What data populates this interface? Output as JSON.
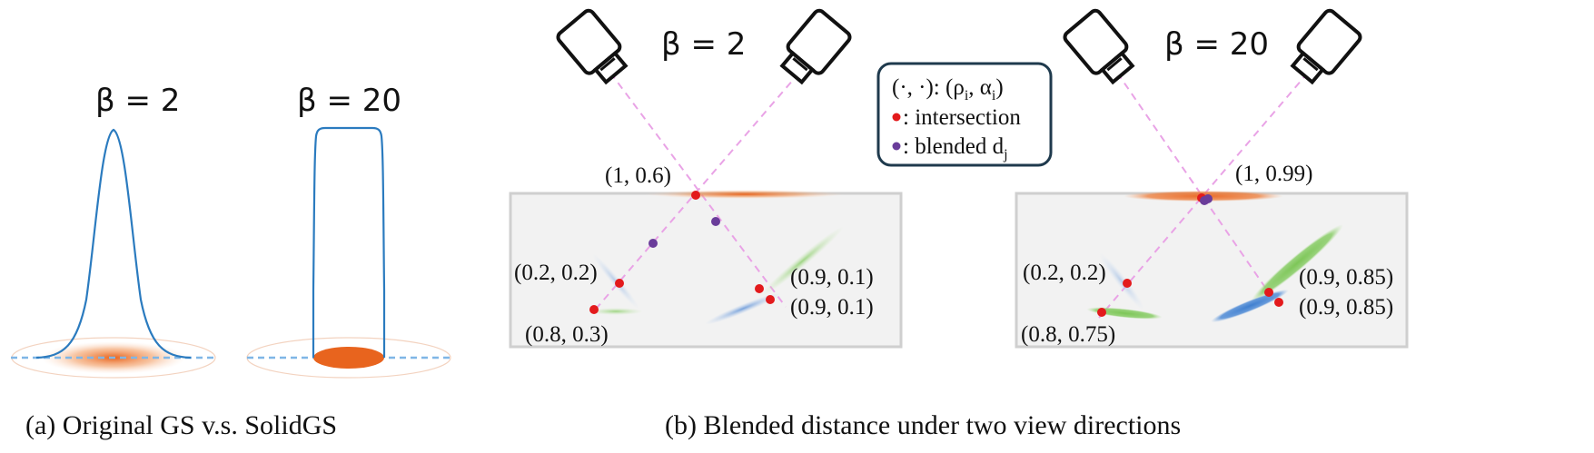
{
  "panel_a": {
    "label_beta2": "β = 2",
    "label_beta20": "β = 20",
    "caption": "(a) Original GS v.s. SolidGS"
  },
  "panel_b": {
    "left_title": "β = 2",
    "right_title": "β = 20",
    "caption": "(b) Blended distance under two view directions",
    "legend": {
      "pair_line": "(·, ·): (ρ",
      "pair_sub_i1": "i",
      "pair_mid": ", α",
      "pair_sub_i2": "i",
      "pair_end": ")",
      "intersection": ": intersection",
      "blended": ": blended d",
      "blended_sub": "j"
    },
    "left_labels": {
      "top": "(1, 0.6)",
      "a": "(0.2, 0.2)",
      "b": "(0.8, 0.3)",
      "c": "(0.9, 0.1)",
      "d": "(0.9, 0.1)"
    },
    "right_labels": {
      "top": "(1, 0.99)",
      "a": "(0.2, 0.2)",
      "b": "(0.8, 0.75)",
      "c": "(0.9, 0.85)",
      "d": "(0.9, 0.85)"
    }
  },
  "colors": {
    "curve": "#2b7bbf",
    "gaussian": "#e8641e",
    "intersection": "#e31a1c",
    "blended": "#6a3d9a",
    "ray": "#e9a3e6",
    "box": "#cfcfcf"
  }
}
